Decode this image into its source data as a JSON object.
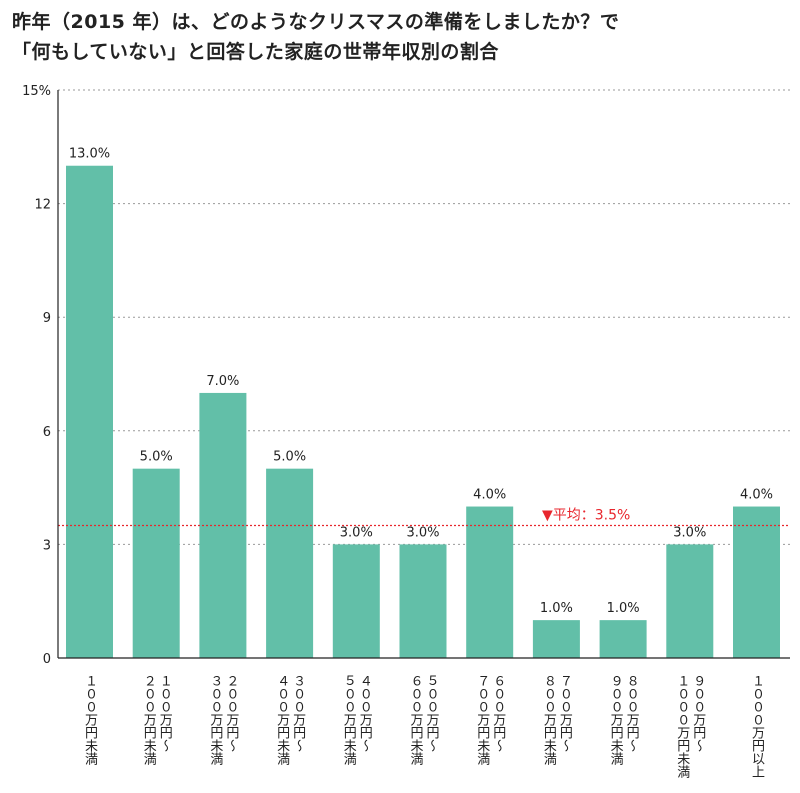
{
  "chart_data": {
    "type": "bar",
    "title": [
      "昨年（2015 年）は、どのようなクリスマスの準備をしましたか？で",
      "「何もしていない」と回答した家庭の世帯年収別の割合"
    ],
    "categories": [
      [
        "１００万円未満"
      ],
      [
        "１００万円〜",
        "２００万円未満"
      ],
      [
        "２００万円〜",
        "３００万円未満"
      ],
      [
        "３００万円〜",
        "４００万円未満"
      ],
      [
        "４００万円〜",
        "５００万円未満"
      ],
      [
        "５００万円〜",
        "６００万円未満"
      ],
      [
        "６００万円〜",
        "７００万円未満"
      ],
      [
        "７００万円〜",
        "８００万円未満"
      ],
      [
        "８００万円〜",
        "９００万円未満"
      ],
      [
        "９００万円〜",
        "１０００万円未満"
      ],
      [
        "１０００万円以上"
      ]
    ],
    "values": [
      13.0,
      5.0,
      7.0,
      5.0,
      3.0,
      3.0,
      4.0,
      1.0,
      1.0,
      3.0,
      4.0
    ],
    "value_labels": [
      "13.0%",
      "5.0%",
      "7.0%",
      "5.0%",
      "3.0%",
      "3.0%",
      "4.0%",
      "1.0%",
      "1.0%",
      "3.0%",
      "4.0%"
    ],
    "ylim": [
      0,
      15
    ],
    "yticks": [
      0,
      3,
      6,
      9,
      12,
      15
    ],
    "ytick_labels": [
      "0",
      "3",
      "6",
      "9",
      "12",
      "15%"
    ],
    "grid": true,
    "average": {
      "value": 3.5,
      "label": "▼平均：3.5%"
    },
    "colors": {
      "bar": "#62bfa8",
      "average": "#e8262d",
      "grid": "#9a9a9a",
      "axis": "#222222"
    }
  }
}
